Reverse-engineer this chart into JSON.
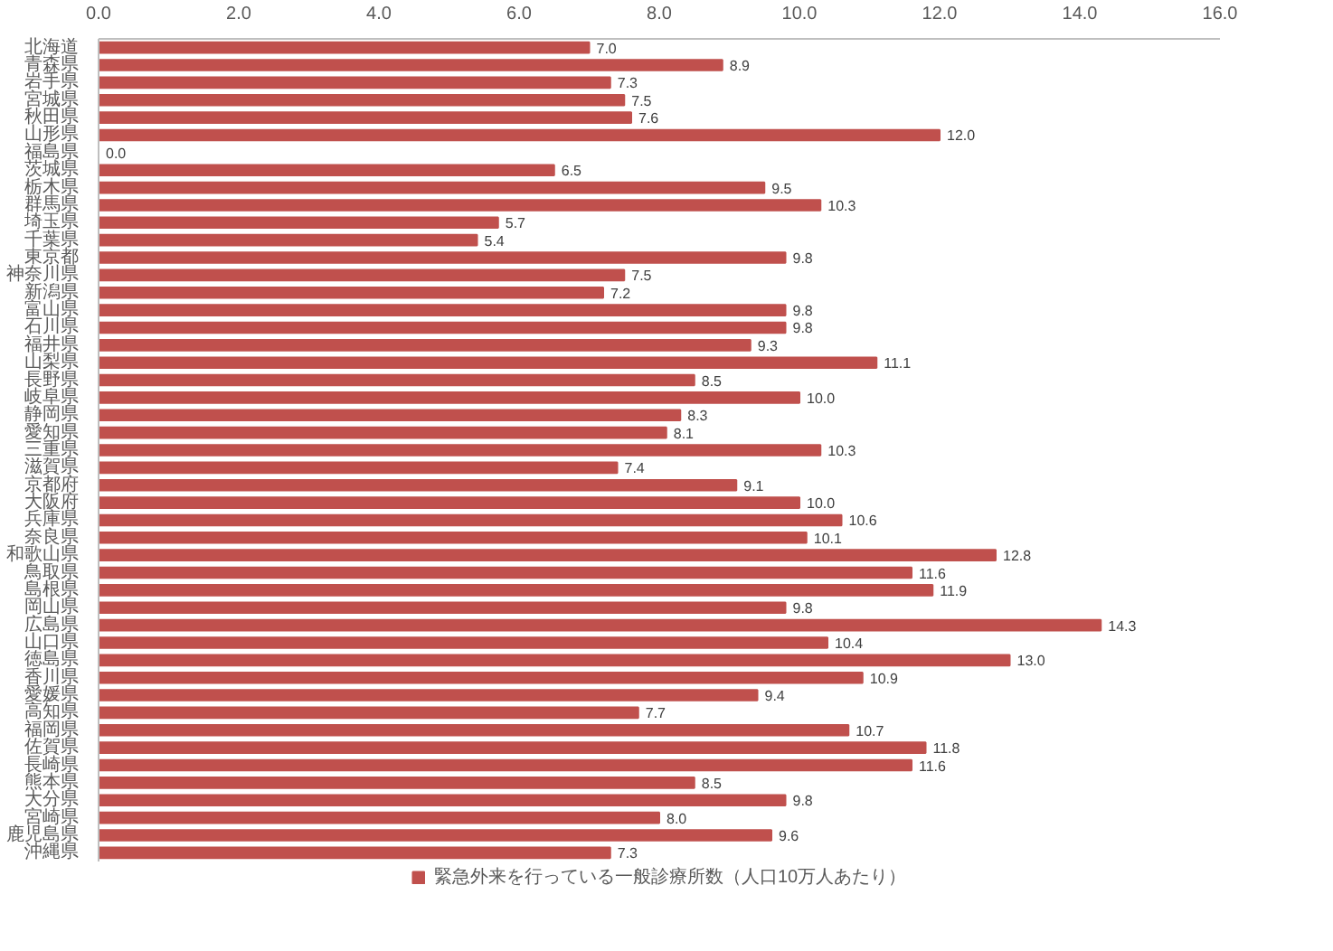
{
  "chart_data": {
    "type": "bar",
    "orientation": "horizontal",
    "categories": [
      "北海道",
      "青森県",
      "岩手県",
      "宮城県",
      "秋田県",
      "山形県",
      "福島県",
      "茨城県",
      "栃木県",
      "群馬県",
      "埼玉県",
      "千葉県",
      "東京都",
      "神奈川県",
      "新潟県",
      "富山県",
      "石川県",
      "福井県",
      "山梨県",
      "長野県",
      "岐阜県",
      "静岡県",
      "愛知県",
      "三重県",
      "滋賀県",
      "京都府",
      "大阪府",
      "兵庫県",
      "奈良県",
      "和歌山県",
      "鳥取県",
      "島根県",
      "岡山県",
      "広島県",
      "山口県",
      "徳島県",
      "香川県",
      "愛媛県",
      "高知県",
      "福岡県",
      "佐賀県",
      "長崎県",
      "熊本県",
      "大分県",
      "宮崎県",
      "鹿児島県",
      "沖縄県"
    ],
    "series": [
      {
        "name": "緊急外来を行っている一般診療所数（人口10万人あたり）",
        "color": "#c0504d",
        "values": [
          7,
          8.9,
          7.3,
          7.5,
          7.6,
          12,
          0,
          6.5,
          9.5,
          10.3,
          5.7,
          5.4,
          9.8,
          7.5,
          7.2,
          9.8,
          9.8,
          9.3,
          11.1,
          8.5,
          10,
          8.3,
          8.1,
          10.3,
          7.4,
          9.1,
          10,
          10.6,
          10.1,
          12.8,
          11.6,
          11.9,
          9.8,
          14.3,
          10.4,
          13,
          10.9,
          9.4,
          7.7,
          10.7,
          11.8,
          11.6,
          8.5,
          9.8,
          8,
          9.6,
          7.3
        ],
        "value_labels": [
          "7.0",
          "8.9",
          "7.3",
          "7.5",
          "7.6",
          "12.0",
          "0.0",
          "6.5",
          "9.5",
          "10.3",
          "5.7",
          "5.4",
          "9.8",
          "7.5",
          "7.2",
          "9.8",
          "9.8",
          "9.3",
          "11.1",
          "8.5",
          "10.0",
          "8.3",
          "8.1",
          "10.3",
          "7.4",
          "9.1",
          "10.0",
          "10.6",
          "10.1",
          "12.8",
          "11.6",
          "11.9",
          "9.8",
          "14.3",
          "10.4",
          "13.0",
          "10.9",
          "9.4",
          "7.7",
          "10.7",
          "11.8",
          "11.6",
          "8.5",
          "9.8",
          "8.0",
          "9.6",
          "7.3"
        ]
      }
    ],
    "xlim": [
      0,
      16
    ],
    "xticks": [
      {
        "value": 0,
        "label": "0.0"
      },
      {
        "value": 2,
        "label": "2.0"
      },
      {
        "value": 4,
        "label": "4.0"
      },
      {
        "value": 6,
        "label": "6.0"
      },
      {
        "value": 8,
        "label": "8.0"
      },
      {
        "value": 10,
        "label": "10.0"
      },
      {
        "value": 12,
        "label": "12.0"
      },
      {
        "value": 14,
        "label": "14.0"
      },
      {
        "value": 16,
        "label": "16.0"
      }
    ],
    "grid": false,
    "legend": "bottom"
  }
}
